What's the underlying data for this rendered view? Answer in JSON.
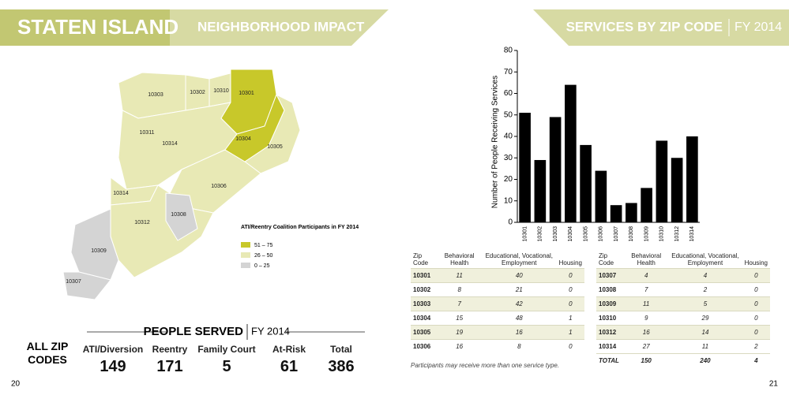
{
  "left_header": {
    "title": "STATEN ISLAND",
    "subtitle": "NEIGHBORHOOD IMPACT"
  },
  "right_header": {
    "title": "SERVICES BY ZIP CODE",
    "subtitle": "FY 2014"
  },
  "map": {
    "labels": [
      "10303",
      "10302",
      "10310",
      "10301",
      "10311",
      "10314",
      "10304",
      "10305",
      "10306",
      "10314",
      "10308",
      "10312",
      "10309",
      "10307"
    ],
    "legend": {
      "title": "ATI/Reentry Coalition Participants in FY 2014",
      "items": [
        "51 – 75",
        "26 – 50",
        "0 – 25"
      ]
    }
  },
  "chart_data": {
    "type": "bar",
    "ylabel": "Number of People Receiving Services",
    "categories": [
      "10301",
      "10302",
      "10303",
      "10304",
      "10305",
      "10306",
      "10307",
      "10308",
      "10309",
      "10310",
      "10312",
      "10314"
    ],
    "values": [
      51,
      29,
      49,
      64,
      36,
      24,
      8,
      9,
      16,
      38,
      30,
      40
    ],
    "color": "#000000",
    "ylim": [
      0,
      80
    ],
    "yticks": [
      0,
      10,
      20,
      30,
      40,
      50,
      60,
      70,
      80
    ]
  },
  "people_served": {
    "title": "PEOPLE SERVED",
    "subtitle": "FY 2014",
    "row_label": "ALL ZIP CODES",
    "columns": [
      {
        "label": "ATI/Diversion",
        "value": 149
      },
      {
        "label": "Reentry",
        "value": 171
      },
      {
        "label": "Family Court",
        "value": 5
      },
      {
        "label": "At-Risk",
        "value": 61
      },
      {
        "label": "Total",
        "value": 386
      }
    ]
  },
  "tables": {
    "headers": [
      "Zip Code",
      "Behavioral Health",
      "Educational, Vocational, Employment",
      "Housing"
    ],
    "left_rows": [
      [
        "10301",
        11,
        40,
        0
      ],
      [
        "10302",
        8,
        21,
        0
      ],
      [
        "10303",
        7,
        42,
        0
      ],
      [
        "10304",
        15,
        48,
        1
      ],
      [
        "10305",
        19,
        16,
        1
      ],
      [
        "10306",
        16,
        8,
        0
      ]
    ],
    "right_rows": [
      [
        "10307",
        4,
        4,
        0
      ],
      [
        "10308",
        7,
        2,
        0
      ],
      [
        "10309",
        11,
        5,
        0
      ],
      [
        "10310",
        9,
        29,
        0
      ],
      [
        "10312",
        16,
        14,
        0
      ],
      [
        "10314",
        27,
        11,
        2
      ],
      [
        "TOTAL",
        150,
        240,
        4
      ]
    ],
    "note": "Participants may receive more than one service type."
  },
  "page_numbers": [
    "20",
    "21"
  ]
}
